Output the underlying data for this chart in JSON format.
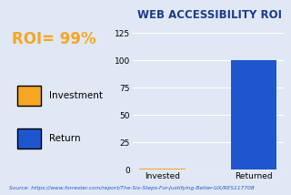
{
  "title": "WEB ACCESSIBILITY ROI",
  "roi_text": "ROI= 99%",
  "categories": [
    "Invested",
    "Returned"
  ],
  "values": [
    1,
    100
  ],
  "bar_colors": [
    "#F5A623",
    "#1E56D0"
  ],
  "ylim": [
    0,
    125
  ],
  "yticks": [
    0,
    25,
    50,
    75,
    100,
    125
  ],
  "background_color": "#E0E8F5",
  "title_color": "#1E3A8A",
  "roi_color": "#F5A623",
  "source_text": "Source: https://www.forrester.com/report/The-Six-Steps-For-Justifying-Better-UX/RES117708",
  "source_color": "#2255CC",
  "legend_labels": [
    "Investment",
    "Return"
  ],
  "legend_colors": [
    "#F5A623",
    "#1E56D0"
  ],
  "title_fontsize": 8.5,
  "roi_fontsize": 12,
  "tick_fontsize": 6.5,
  "source_fontsize": 4.2,
  "xlabel_fontsize": 6.5,
  "legend_fontsize": 7.5
}
